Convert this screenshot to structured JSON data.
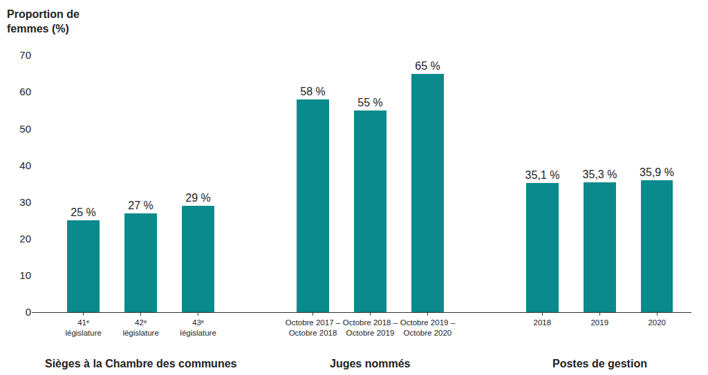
{
  "chart_data": {
    "type": "bar",
    "ylabel": "Proportion de\nfemmes (%)",
    "categories": [
      "41ᵉ\nlégislature",
      "42ᵉ\nlégislature",
      "43ᵉ\nlégislature",
      null,
      "Octobre 2017 –\nOctobre 2018",
      "Octobre 2018 –\nOctobre 2019",
      "Octobre 2019 –\nOctobre 2020",
      null,
      "2018",
      "2019",
      "2020"
    ],
    "values": [
      25,
      27,
      29,
      null,
      58,
      55,
      65,
      null,
      35.1,
      35.3,
      35.9
    ],
    "value_labels": [
      "25 %",
      "27 %",
      "29 %",
      null,
      "58 %",
      "55 %",
      "65 %",
      null,
      "35,1 %",
      "35,3 %",
      "35,9 %"
    ],
    "color": "#0a8a8c",
    "ylim": [
      0,
      70
    ],
    "yticks": [
      0,
      10,
      20,
      30,
      40,
      50,
      60,
      70
    ],
    "grid": false,
    "data_labels": true,
    "groups": [
      {
        "name": "Sièges à la Chambre des communes",
        "categories": [
          "41ᵉ\nlégislature",
          "42ᵉ\nlégislature",
          "43ᵉ\nlégislature"
        ]
      },
      {
        "name": "Juges nommés",
        "categories": [
          "Octobre 2017 –\nOctobre 2018",
          "Octobre 2018 –\nOctobre 2019",
          "Octobre 2019 –\nOctobre 2020"
        ]
      },
      {
        "name": "Postes de gestion",
        "categories": [
          "2018",
          "2019",
          "2020"
        ]
      }
    ]
  }
}
